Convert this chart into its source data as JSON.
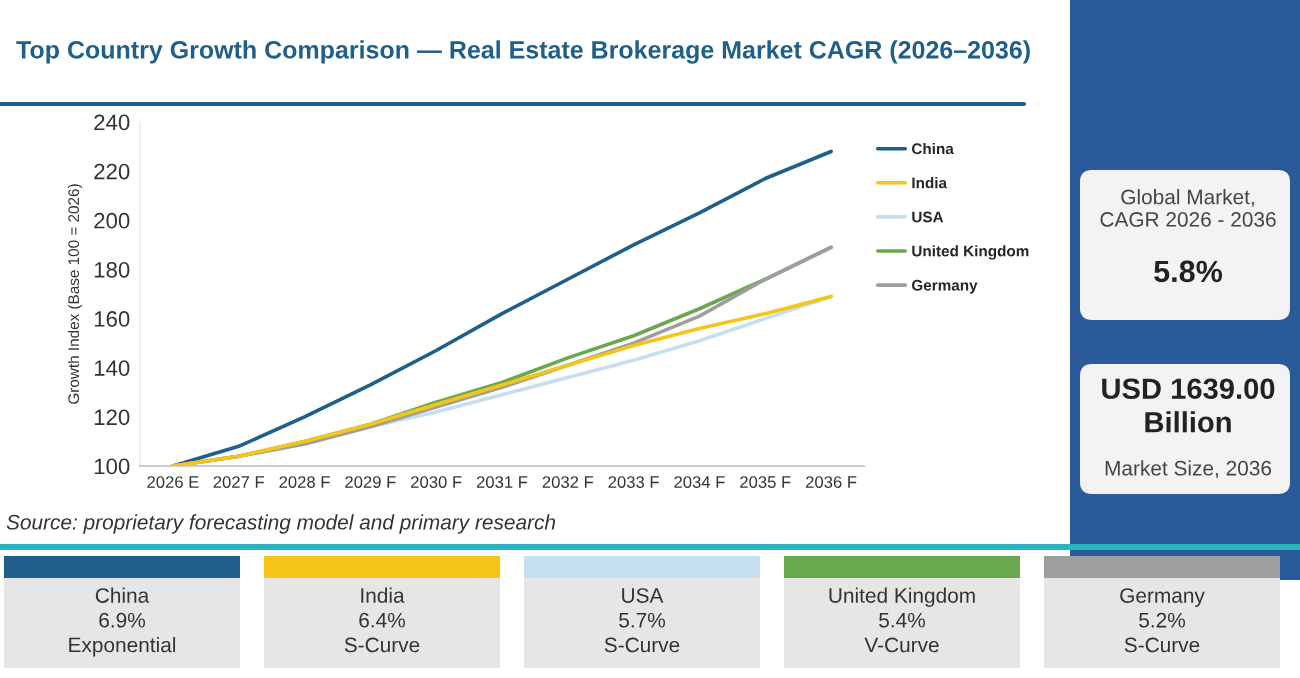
{
  "chart_data": [
    {
      "type": "line",
      "title": "Top Country Growth Comparison — Real Estate Brokerage Market CAGR (2026–2036)",
      "ylabel": "Growth Index (Base 100 = 2026)",
      "categories": [
        "2026 E",
        "2027 F",
        "2028 F",
        "2029 F",
        "2030 F",
        "2031 F",
        "2032 F",
        "2033 F",
        "2034 F",
        "2035 F",
        "2036 F"
      ],
      "series": [
        {
          "name": "China",
          "color": "#1f5f8b",
          "values": [
            100,
            108,
            120,
            133,
            147,
            162,
            176,
            190,
            203,
            217,
            228
          ]
        },
        {
          "name": "India",
          "color": "#f5c518",
          "values": [
            100,
            104,
            110,
            117,
            125,
            133,
            141,
            149,
            156,
            162,
            169
          ]
        },
        {
          "name": "USA",
          "color": "#c5dff0",
          "values": [
            100,
            104,
            109,
            116,
            122,
            129,
            136,
            143,
            151,
            160,
            169
          ]
        },
        {
          "name": "United Kingdom",
          "color": "#6aa84f",
          "values": [
            100,
            104,
            110,
            117,
            126,
            134,
            144,
            153,
            164,
            176,
            189
          ]
        },
        {
          "name": "Germany",
          "color": "#9e9e9e",
          "values": [
            100,
            104,
            109,
            116,
            124,
            132,
            141,
            150,
            161,
            176,
            189
          ]
        }
      ],
      "ylim": [
        100,
        240
      ],
      "yticks": [
        100,
        120,
        140,
        160,
        180,
        200,
        220,
        240
      ],
      "grid": false,
      "legend": "right",
      "marker": "none",
      "line_style": "solid",
      "annotations": [
        "Source: proprietary forecasting model and primary research"
      ]
    },
    {
      "type": "other",
      "annotations": [
        "Global Market,\nCAGR 2026 - 2036",
        "5.8%",
        "USD 1639.00\nBillion",
        "Market Size, 2036",
        "China\n6.9%\nExponential",
        "India\n6.4%\nS-Curve",
        "USA\n5.7%\nS-Curve",
        "United Kingdom\n5.4%\nV-Curve",
        "Germany\n5.2%\nS-Curve"
      ]
    }
  ]
}
